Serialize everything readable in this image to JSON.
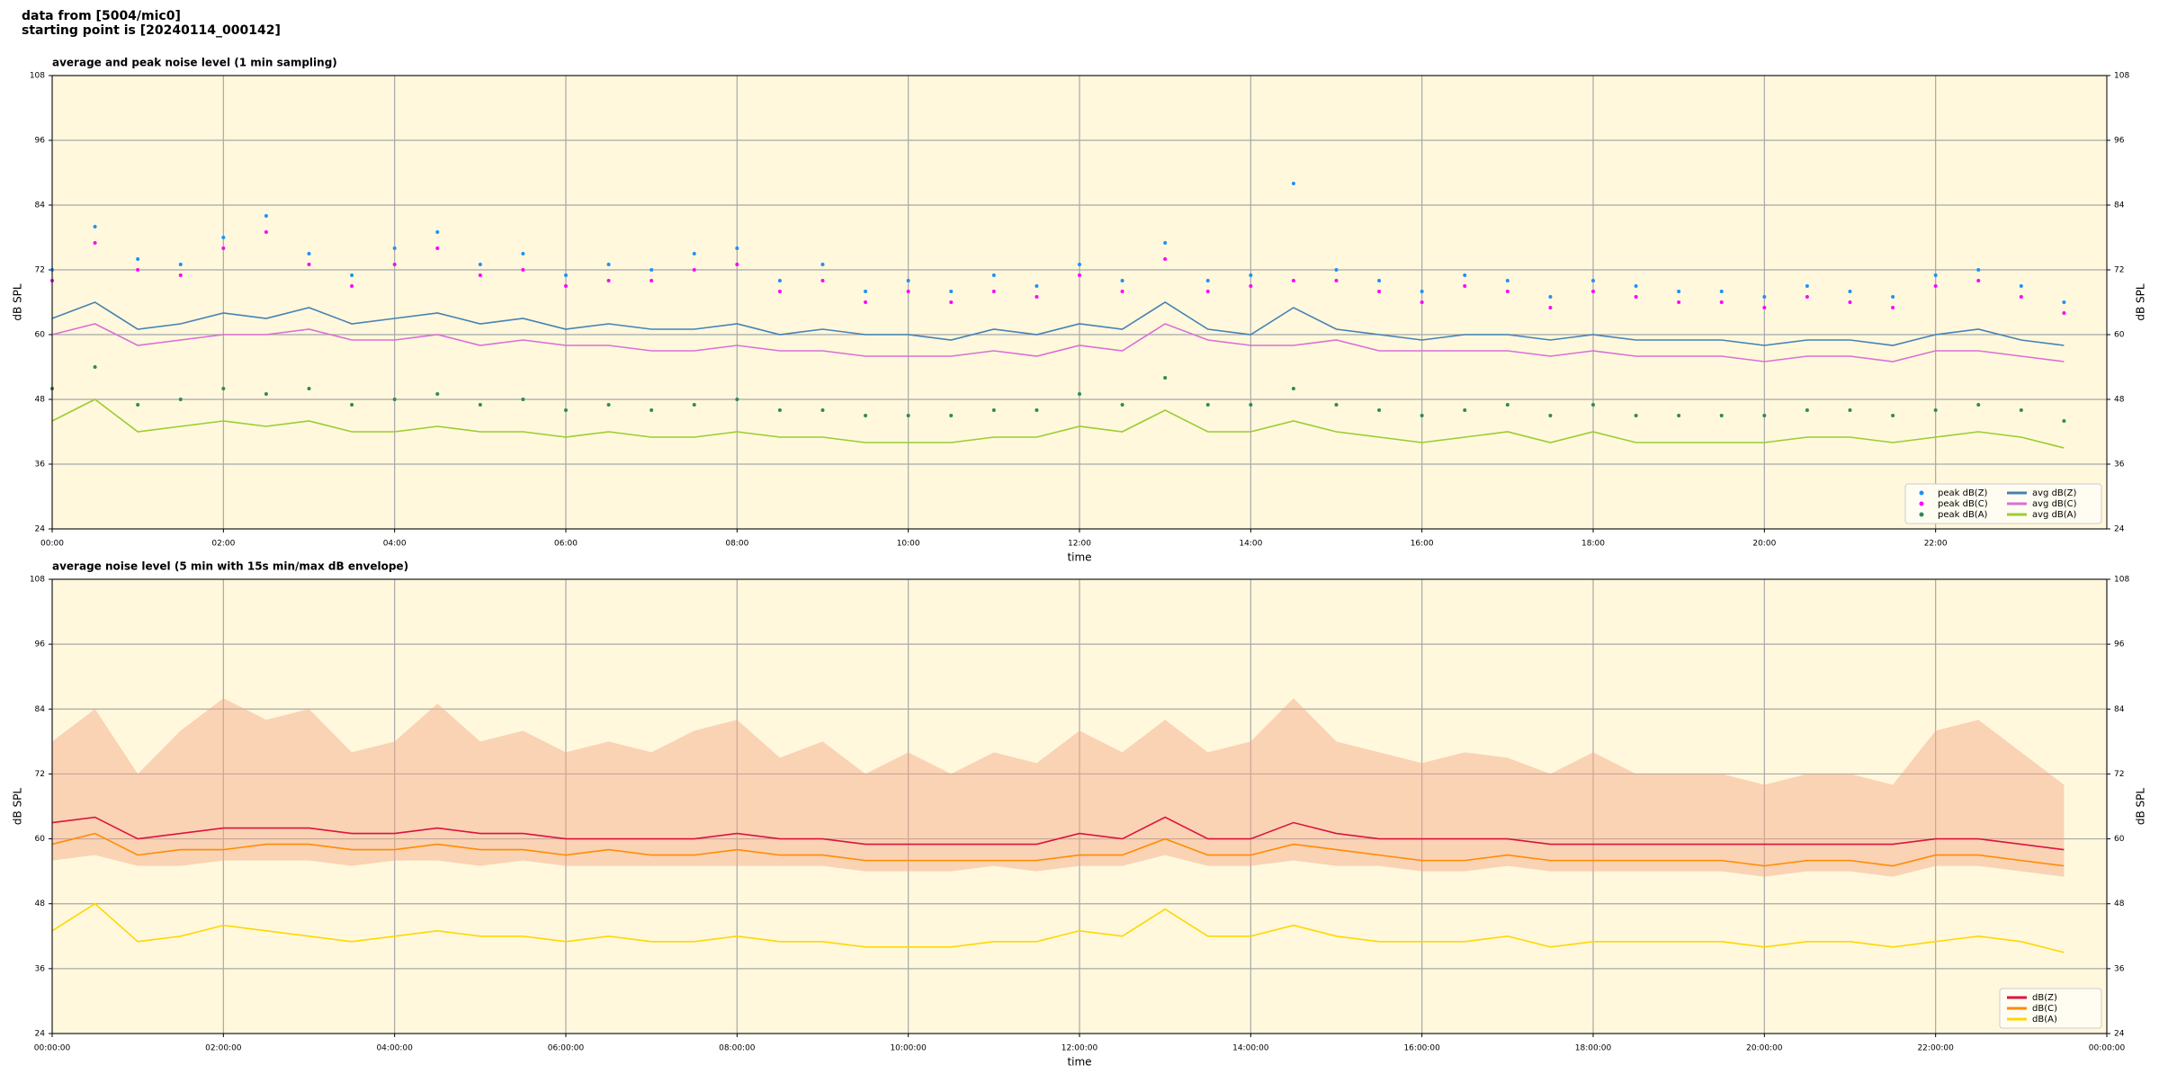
{
  "page": {
    "title_lines": [
      "data from [5004/mic0]",
      "starting point is [20240114_000142]"
    ]
  },
  "chart_data": [
    {
      "type": "line",
      "title": "average and peak noise level (1 min sampling)",
      "xlabel": "time",
      "ylabel": "dB SPL",
      "background": "#fff8dc",
      "grid": true,
      "legend": "lower right",
      "legend_columns": 2,
      "xlim": [
        0,
        24
      ],
      "xticks": [
        {
          "value": 0,
          "label": "00:00"
        },
        {
          "value": 2,
          "label": "02:00"
        },
        {
          "value": 4,
          "label": "04:00"
        },
        {
          "value": 6,
          "label": "06:00"
        },
        {
          "value": 8,
          "label": "08:00"
        },
        {
          "value": 10,
          "label": "10:00"
        },
        {
          "value": 12,
          "label": "12:00"
        },
        {
          "value": 14,
          "label": "14:00"
        },
        {
          "value": 16,
          "label": "16:00"
        },
        {
          "value": 18,
          "label": "18:00"
        },
        {
          "value": 20,
          "label": "20:00"
        },
        {
          "value": 22,
          "label": "22:00"
        }
      ],
      "ylim": [
        24,
        108
      ],
      "yticks": [
        24,
        36,
        48,
        60,
        72,
        84,
        96,
        108
      ],
      "x": [
        0,
        0.5,
        1,
        1.5,
        2,
        2.5,
        3,
        3.5,
        4,
        4.5,
        5,
        5.5,
        6,
        6.5,
        7,
        7.5,
        8,
        8.5,
        9,
        9.5,
        10,
        10.5,
        11,
        11.5,
        12,
        12.5,
        13,
        13.5,
        14,
        14.5,
        15,
        15.5,
        16,
        16.5,
        17,
        17.5,
        18,
        18.5,
        19,
        19.5,
        20,
        20.5,
        21,
        21.5,
        22,
        22.5,
        23,
        23.5
      ],
      "series": [
        {
          "name": "peak dB(Z)",
          "kind": "scatter",
          "color": "#1e90ff",
          "values": [
            72,
            80,
            74,
            73,
            78,
            82,
            75,
            71,
            76,
            79,
            73,
            75,
            71,
            73,
            72,
            75,
            76,
            70,
            73,
            68,
            70,
            68,
            71,
            69,
            73,
            70,
            77,
            70,
            71,
            88,
            72,
            70,
            68,
            71,
            70,
            67,
            70,
            69,
            68,
            68,
            67,
            69,
            68,
            67,
            71,
            72,
            69,
            66
          ]
        },
        {
          "name": "peak dB(C)",
          "kind": "scatter",
          "color": "#ff00ff",
          "values": [
            70,
            77,
            72,
            71,
            76,
            79,
            73,
            69,
            73,
            76,
            71,
            72,
            69,
            70,
            70,
            72,
            73,
            68,
            70,
            66,
            68,
            66,
            68,
            67,
            71,
            68,
            74,
            68,
            69,
            70,
            70,
            68,
            66,
            69,
            68,
            65,
            68,
            67,
            66,
            66,
            65,
            67,
            66,
            65,
            69,
            70,
            67,
            64
          ]
        },
        {
          "name": "peak dB(A)",
          "kind": "scatter",
          "color": "#2e8b57",
          "values": [
            50,
            54,
            47,
            48,
            50,
            49,
            50,
            47,
            48,
            49,
            47,
            48,
            46,
            47,
            46,
            47,
            48,
            46,
            46,
            45,
            45,
            45,
            46,
            46,
            49,
            47,
            52,
            47,
            47,
            50,
            47,
            46,
            45,
            46,
            47,
            45,
            47,
            45,
            45,
            45,
            45,
            46,
            46,
            45,
            46,
            47,
            46,
            44
          ]
        },
        {
          "name": "avg dB(Z)",
          "kind": "line",
          "color": "#4682b4",
          "values": [
            63,
            66,
            61,
            62,
            64,
            63,
            65,
            62,
            63,
            64,
            62,
            63,
            61,
            62,
            61,
            61,
            62,
            60,
            61,
            60,
            60,
            59,
            61,
            60,
            62,
            61,
            66,
            61,
            60,
            65,
            61,
            60,
            59,
            60,
            60,
            59,
            60,
            59,
            59,
            59,
            58,
            59,
            59,
            58,
            60,
            61,
            59,
            58
          ]
        },
        {
          "name": "avg dB(C)",
          "kind": "line",
          "color": "#da70d6",
          "values": [
            60,
            62,
            58,
            59,
            60,
            60,
            61,
            59,
            59,
            60,
            58,
            59,
            58,
            58,
            57,
            57,
            58,
            57,
            57,
            56,
            56,
            56,
            57,
            56,
            58,
            57,
            62,
            59,
            58,
            58,
            59,
            57,
            57,
            57,
            57,
            56,
            57,
            56,
            56,
            56,
            55,
            56,
            56,
            55,
            57,
            57,
            56,
            55
          ]
        },
        {
          "name": "avg dB(A)",
          "kind": "line",
          "color": "#9acd32",
          "values": [
            44,
            48,
            42,
            43,
            44,
            43,
            44,
            42,
            42,
            43,
            42,
            42,
            41,
            42,
            41,
            41,
            42,
            41,
            41,
            40,
            40,
            40,
            41,
            41,
            43,
            42,
            46,
            42,
            42,
            44,
            42,
            41,
            40,
            41,
            42,
            40,
            42,
            40,
            40,
            40,
            40,
            41,
            41,
            40,
            41,
            42,
            41,
            39
          ]
        }
      ]
    },
    {
      "type": "line",
      "title": "average noise level (5 min with 15s min/max dB envelope)",
      "xlabel": "time",
      "ylabel": "dB SPL",
      "background": "#fff8dc",
      "grid": true,
      "legend": "lower right",
      "legend_columns": 1,
      "xlim": [
        0,
        24
      ],
      "xticks": [
        {
          "value": 0,
          "label": "00:00:00"
        },
        {
          "value": 2,
          "label": "02:00:00"
        },
        {
          "value": 4,
          "label": "04:00:00"
        },
        {
          "value": 6,
          "label": "06:00:00"
        },
        {
          "value": 8,
          "label": "08:00:00"
        },
        {
          "value": 10,
          "label": "10:00:00"
        },
        {
          "value": 12,
          "label": "12:00:00"
        },
        {
          "value": 14,
          "label": "14:00:00"
        },
        {
          "value": 16,
          "label": "16:00:00"
        },
        {
          "value": 18,
          "label": "18:00:00"
        },
        {
          "value": 20,
          "label": "20:00:00"
        },
        {
          "value": 22,
          "label": "22:00:00"
        },
        {
          "value": 24,
          "label": "00:00:00"
        }
      ],
      "ylim": [
        24,
        108
      ],
      "yticks": [
        24,
        36,
        48,
        60,
        72,
        84,
        96,
        108
      ],
      "x": [
        0,
        0.5,
        1,
        1.5,
        2,
        2.5,
        3,
        3.5,
        4,
        4.5,
        5,
        5.5,
        6,
        6.5,
        7,
        7.5,
        8,
        8.5,
        9,
        9.5,
        10,
        10.5,
        11,
        11.5,
        12,
        12.5,
        13,
        13.5,
        14,
        14.5,
        15,
        15.5,
        16,
        16.5,
        17,
        17.5,
        18,
        18.5,
        19,
        19.5,
        20,
        20.5,
        21,
        21.5,
        22,
        22.5,
        23,
        23.5
      ],
      "envelope": {
        "color": "#f4a582",
        "upper": [
          78,
          84,
          72,
          80,
          86,
          82,
          84,
          76,
          78,
          85,
          78,
          80,
          76,
          78,
          76,
          80,
          82,
          75,
          78,
          72,
          76,
          72,
          76,
          74,
          80,
          76,
          82,
          76,
          78,
          86,
          78,
          76,
          74,
          76,
          75,
          72,
          76,
          72,
          72,
          72,
          70,
          72,
          72,
          70,
          80,
          82,
          76,
          70
        ],
        "lower": [
          56,
          57,
          55,
          55,
          56,
          56,
          56,
          55,
          56,
          56,
          55,
          56,
          55,
          55,
          55,
          55,
          55,
          55,
          55,
          54,
          54,
          54,
          55,
          54,
          55,
          55,
          57,
          55,
          55,
          56,
          55,
          55,
          54,
          54,
          55,
          54,
          54,
          54,
          54,
          54,
          53,
          54,
          54,
          53,
          55,
          55,
          54,
          53
        ]
      },
      "series": [
        {
          "name": "dB(Z)",
          "kind": "line",
          "color": "#dc143c",
          "values": [
            63,
            64,
            60,
            61,
            62,
            62,
            62,
            61,
            61,
            62,
            61,
            61,
            60,
            60,
            60,
            60,
            61,
            60,
            60,
            59,
            59,
            59,
            59,
            59,
            61,
            60,
            64,
            60,
            60,
            63,
            61,
            60,
            60,
            60,
            60,
            59,
            59,
            59,
            59,
            59,
            59,
            59,
            59,
            59,
            60,
            60,
            59,
            58
          ]
        },
        {
          "name": "dB(C)",
          "kind": "line",
          "color": "#ff8c00",
          "values": [
            59,
            61,
            57,
            58,
            58,
            59,
            59,
            58,
            58,
            59,
            58,
            58,
            57,
            58,
            57,
            57,
            58,
            57,
            57,
            56,
            56,
            56,
            56,
            56,
            57,
            57,
            60,
            57,
            57,
            59,
            58,
            57,
            56,
            56,
            57,
            56,
            56,
            56,
            56,
            56,
            55,
            56,
            56,
            55,
            57,
            57,
            56,
            55
          ]
        },
        {
          "name": "dB(A)",
          "kind": "line",
          "color": "#ffd700",
          "values": [
            43,
            48,
            41,
            42,
            44,
            43,
            42,
            41,
            42,
            43,
            42,
            42,
            41,
            42,
            41,
            41,
            42,
            41,
            41,
            40,
            40,
            40,
            41,
            41,
            43,
            42,
            47,
            42,
            42,
            44,
            42,
            41,
            41,
            41,
            42,
            40,
            41,
            41,
            41,
            41,
            40,
            41,
            41,
            40,
            41,
            42,
            41,
            39
          ]
        }
      ]
    }
  ]
}
